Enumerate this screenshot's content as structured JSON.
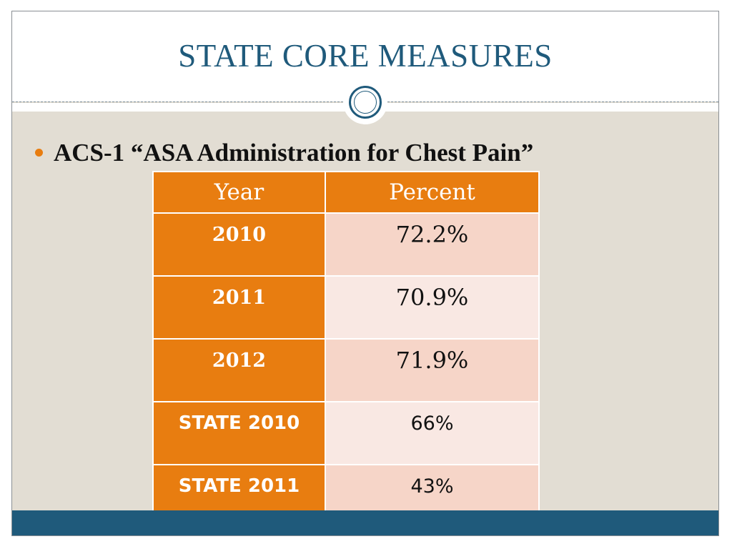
{
  "slide": {
    "title": "STATE CORE MEASURES",
    "bullet": "ACS-1 “ASA Administration for Chest Pain”"
  },
  "table": {
    "headers": [
      "Year",
      "Percent"
    ],
    "rows": [
      {
        "year": "2010",
        "percent": "72.2%"
      },
      {
        "year": "2011",
        "percent": "70.9%"
      },
      {
        "year": "2012",
        "percent": "71.9%"
      },
      {
        "year": "STATE 2010",
        "percent": "66%"
      },
      {
        "year": "STATE 2011",
        "percent": "43%"
      }
    ]
  },
  "colors": {
    "accent_orange": "#e87d10",
    "title_blue": "#1f5a7b",
    "background": "#e2ddd3",
    "cell_alt_1": "#f6d5c8",
    "cell_alt_2": "#f9e8e3"
  }
}
